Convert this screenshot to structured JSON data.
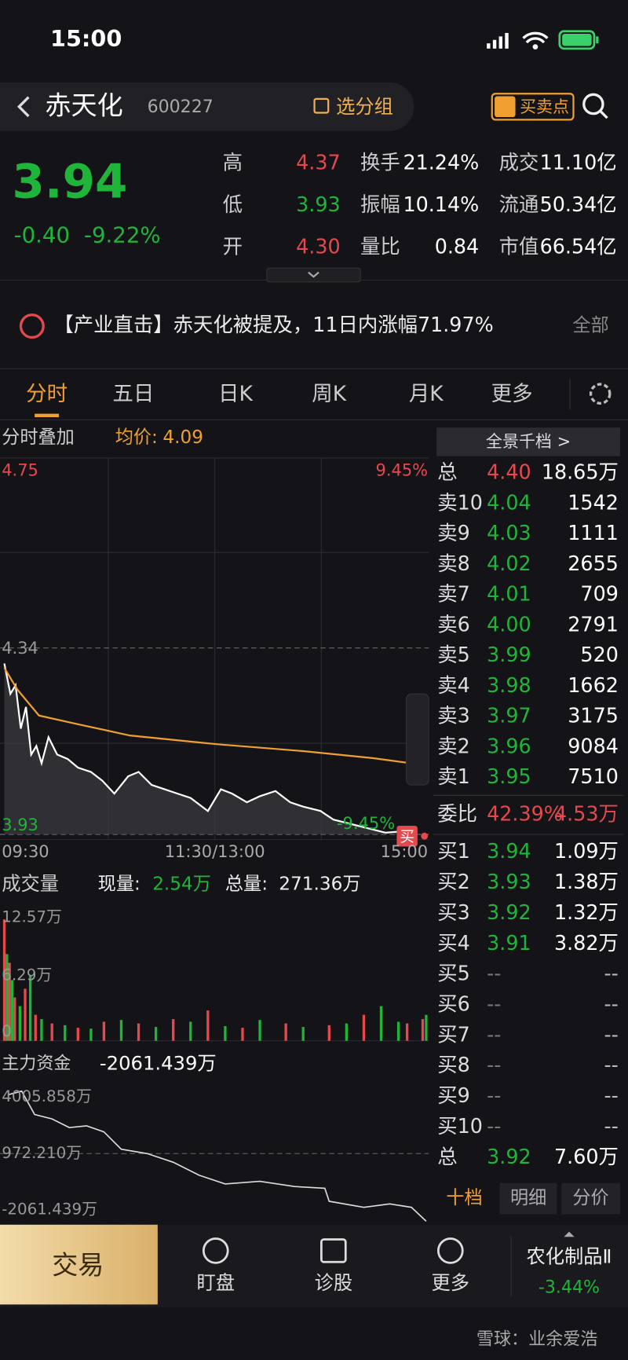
{
  "status_bar": {
    "time": "15:00"
  },
  "header": {
    "name": "赤天化",
    "code": "600227",
    "group_button": "选分组",
    "buy_sell_button": "买卖点"
  },
  "quote": {
    "price": "3.94",
    "change": "-0.40",
    "change_pct": "-9.22%",
    "stats": [
      [
        {
          "label": "高",
          "value": "4.37"
        },
        {
          "label": "换手",
          "value": "21.24%"
        },
        {
          "label": "成交",
          "value": "11.10亿"
        }
      ],
      [
        {
          "label": "低",
          "value": "3.93"
        },
        {
          "label": "振幅",
          "value": "10.14%"
        },
        {
          "label": "流通",
          "value": "50.34亿"
        }
      ],
      [
        {
          "label": "开",
          "value": "4.30"
        },
        {
          "label": "量比",
          "value": "0.84"
        },
        {
          "label": "市值",
          "value": "66.54亿"
        }
      ]
    ]
  },
  "news": {
    "text": "【产业直击】赤天化被提及，11日内涨幅71.97%",
    "more": "全部"
  },
  "tabs": [
    "分时",
    "五日",
    "日K",
    "周K",
    "月K",
    "更多"
  ],
  "intraday": {
    "overlay": "分时叠加",
    "avg_label": "均价:",
    "avg_value": "4.09",
    "price_top": "4.75",
    "pct_top": "9.45%",
    "price_mid": "4.34",
    "price_bottom": "3.93",
    "pct_bottom": "-9.45%",
    "times": [
      "09:30",
      "11:30/13:00",
      "15:00"
    ],
    "buy_tag": "买"
  },
  "volume": {
    "label": "成交量",
    "current_label": "现量:",
    "current": "2.54万",
    "total_label": "总量:",
    "total": "271.36万",
    "ticks": [
      "12.57万",
      "6.29万",
      "0"
    ]
  },
  "capital": {
    "label": "主力资金",
    "value": "-2061.439万",
    "ticks": [
      "4005.858万",
      "972.210万",
      "-2061.439万"
    ]
  },
  "order_book": {
    "title": "全景千档 >",
    "top": [
      "总",
      "4.40",
      "18.65万"
    ],
    "asks": [
      [
        "卖10",
        "4.04",
        "1542"
      ],
      [
        "卖9",
        "4.03",
        "1111"
      ],
      [
        "卖8",
        "4.02",
        "2655"
      ],
      [
        "卖7",
        "4.01",
        "709"
      ],
      [
        "卖6",
        "4.00",
        "2791"
      ],
      [
        "卖5",
        "3.99",
        "520"
      ],
      [
        "卖4",
        "3.98",
        "1662"
      ],
      [
        "卖3",
        "3.97",
        "3175"
      ],
      [
        "卖2",
        "3.96",
        "9084"
      ],
      [
        "卖1",
        "3.95",
        "7510"
      ]
    ],
    "ratio": [
      "委比",
      "42.39%",
      "4.53万"
    ],
    "bids": [
      [
        "买1",
        "3.94",
        "1.09万"
      ],
      [
        "买2",
        "3.93",
        "1.38万"
      ],
      [
        "买3",
        "3.92",
        "1.32万"
      ],
      [
        "买4",
        "3.91",
        "3.82万"
      ],
      [
        "买5",
        "--",
        "--"
      ],
      [
        "买6",
        "--",
        "--"
      ],
      [
        "买7",
        "--",
        "--"
      ],
      [
        "买8",
        "--",
        "--"
      ],
      [
        "买9",
        "--",
        "--"
      ],
      [
        "买10",
        "--",
        "--"
      ]
    ],
    "bottom": [
      "总",
      "3.92",
      "7.60万"
    ],
    "tabs": [
      "十档",
      "明细",
      "分价"
    ]
  },
  "bottom_nav": {
    "trade": "交易",
    "items": [
      "盯盘",
      "诊股",
      "更多"
    ],
    "sector": "农化制品Ⅱ",
    "sector_change": "-3.44%"
  },
  "watermark": "雪球：业余爱浩"
}
